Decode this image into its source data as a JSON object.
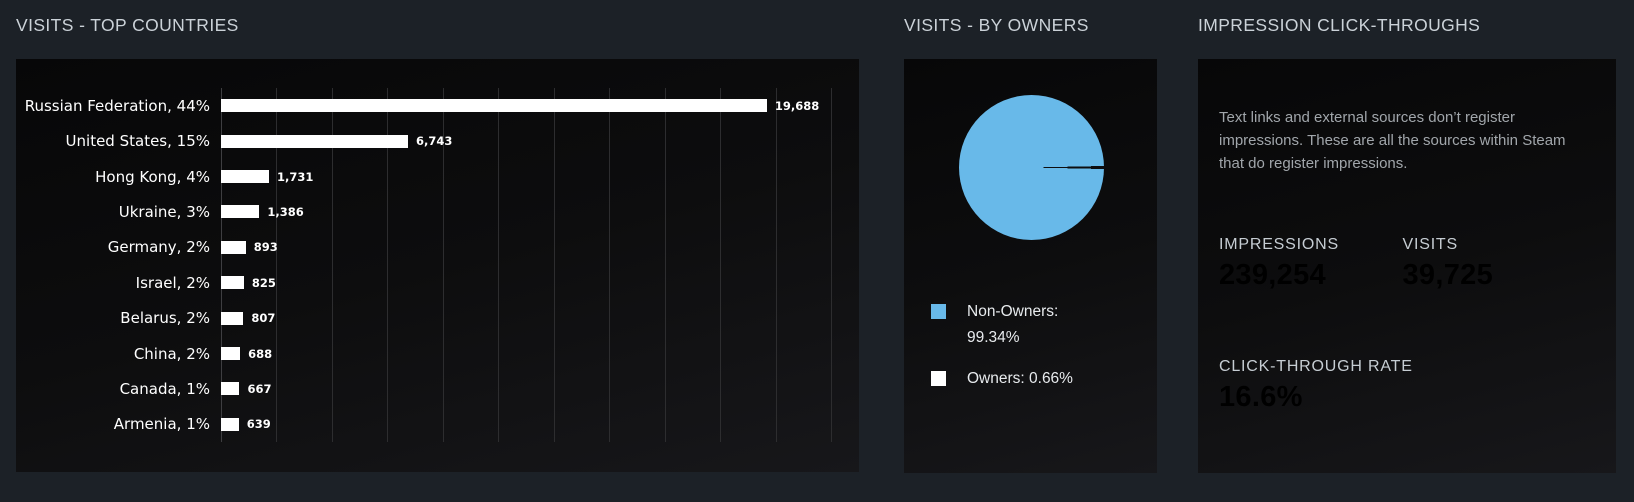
{
  "colors": {
    "accent_blue": "#57ace4",
    "pie_blue": "#68b9e9",
    "bar_white": "#ffffff",
    "page_background": "#1c2127",
    "panel_background": "#0d0d0e"
  },
  "sections": {
    "top_countries": {
      "title": "VISITS - TOP COUNTRIES"
    },
    "by_owners": {
      "title": "VISITS - BY OWNERS",
      "legend": [
        {
          "label": "Non-Owners: 99.34%",
          "color": "#68b9e9"
        },
        {
          "label": "Owners: 0.66%",
          "color": "#ffffff"
        }
      ]
    },
    "impressions": {
      "title": "IMPRESSION CLICK-THROUGHS",
      "description": "Text links and external sources don’t register impressions. These are all the sources within Steam that do register impressions.",
      "stats": [
        {
          "label": "IMPRESSIONS",
          "value": "239,254"
        },
        {
          "label": "VISITS",
          "value": "39,725"
        }
      ],
      "ctr": {
        "label": "CLICK-THROUGH RATE",
        "value": "16.6%"
      }
    }
  },
  "chart_data": [
    {
      "type": "bar",
      "orientation": "horizontal",
      "title": "VISITS - TOP COUNTRIES",
      "categories": [
        "Russian Federation",
        "United States",
        "Hong Kong",
        "Ukraine",
        "Germany",
        "Israel",
        "Belarus",
        "China",
        "Canada",
        "Armenia"
      ],
      "category_labels": [
        "Russian Federation, 44%",
        "United States, 15%",
        "Hong Kong, 4%",
        "Ukraine, 3%",
        "Germany, 2%",
        "Israel, 2%",
        "Belarus, 2%",
        "China, 2%",
        "Canada, 1%",
        "Armenia, 1%"
      ],
      "percentages": [
        44,
        15,
        4,
        3,
        2,
        2,
        2,
        2,
        1,
        1
      ],
      "values": [
        19688,
        6743,
        1731,
        1386,
        893,
        825,
        807,
        688,
        667,
        639
      ],
      "value_labels": [
        "19,688",
        "6,743",
        "1,731",
        "1,386",
        "893",
        "825",
        "807",
        "688",
        "667",
        "639"
      ],
      "xlim": [
        0,
        22000
      ],
      "gridline_interval": 2000,
      "gridline_count": 12,
      "bar_color": "#ffffff",
      "grid": true,
      "legend_position": "none"
    },
    {
      "type": "pie",
      "title": "VISITS - BY OWNERS",
      "slices": [
        {
          "label": "Non-Owners",
          "value": 99.34,
          "color": "#68b9e9"
        },
        {
          "label": "Owners",
          "value": 0.66,
          "color": "#ffffff"
        }
      ],
      "legend_position": "bottom-left"
    }
  ]
}
